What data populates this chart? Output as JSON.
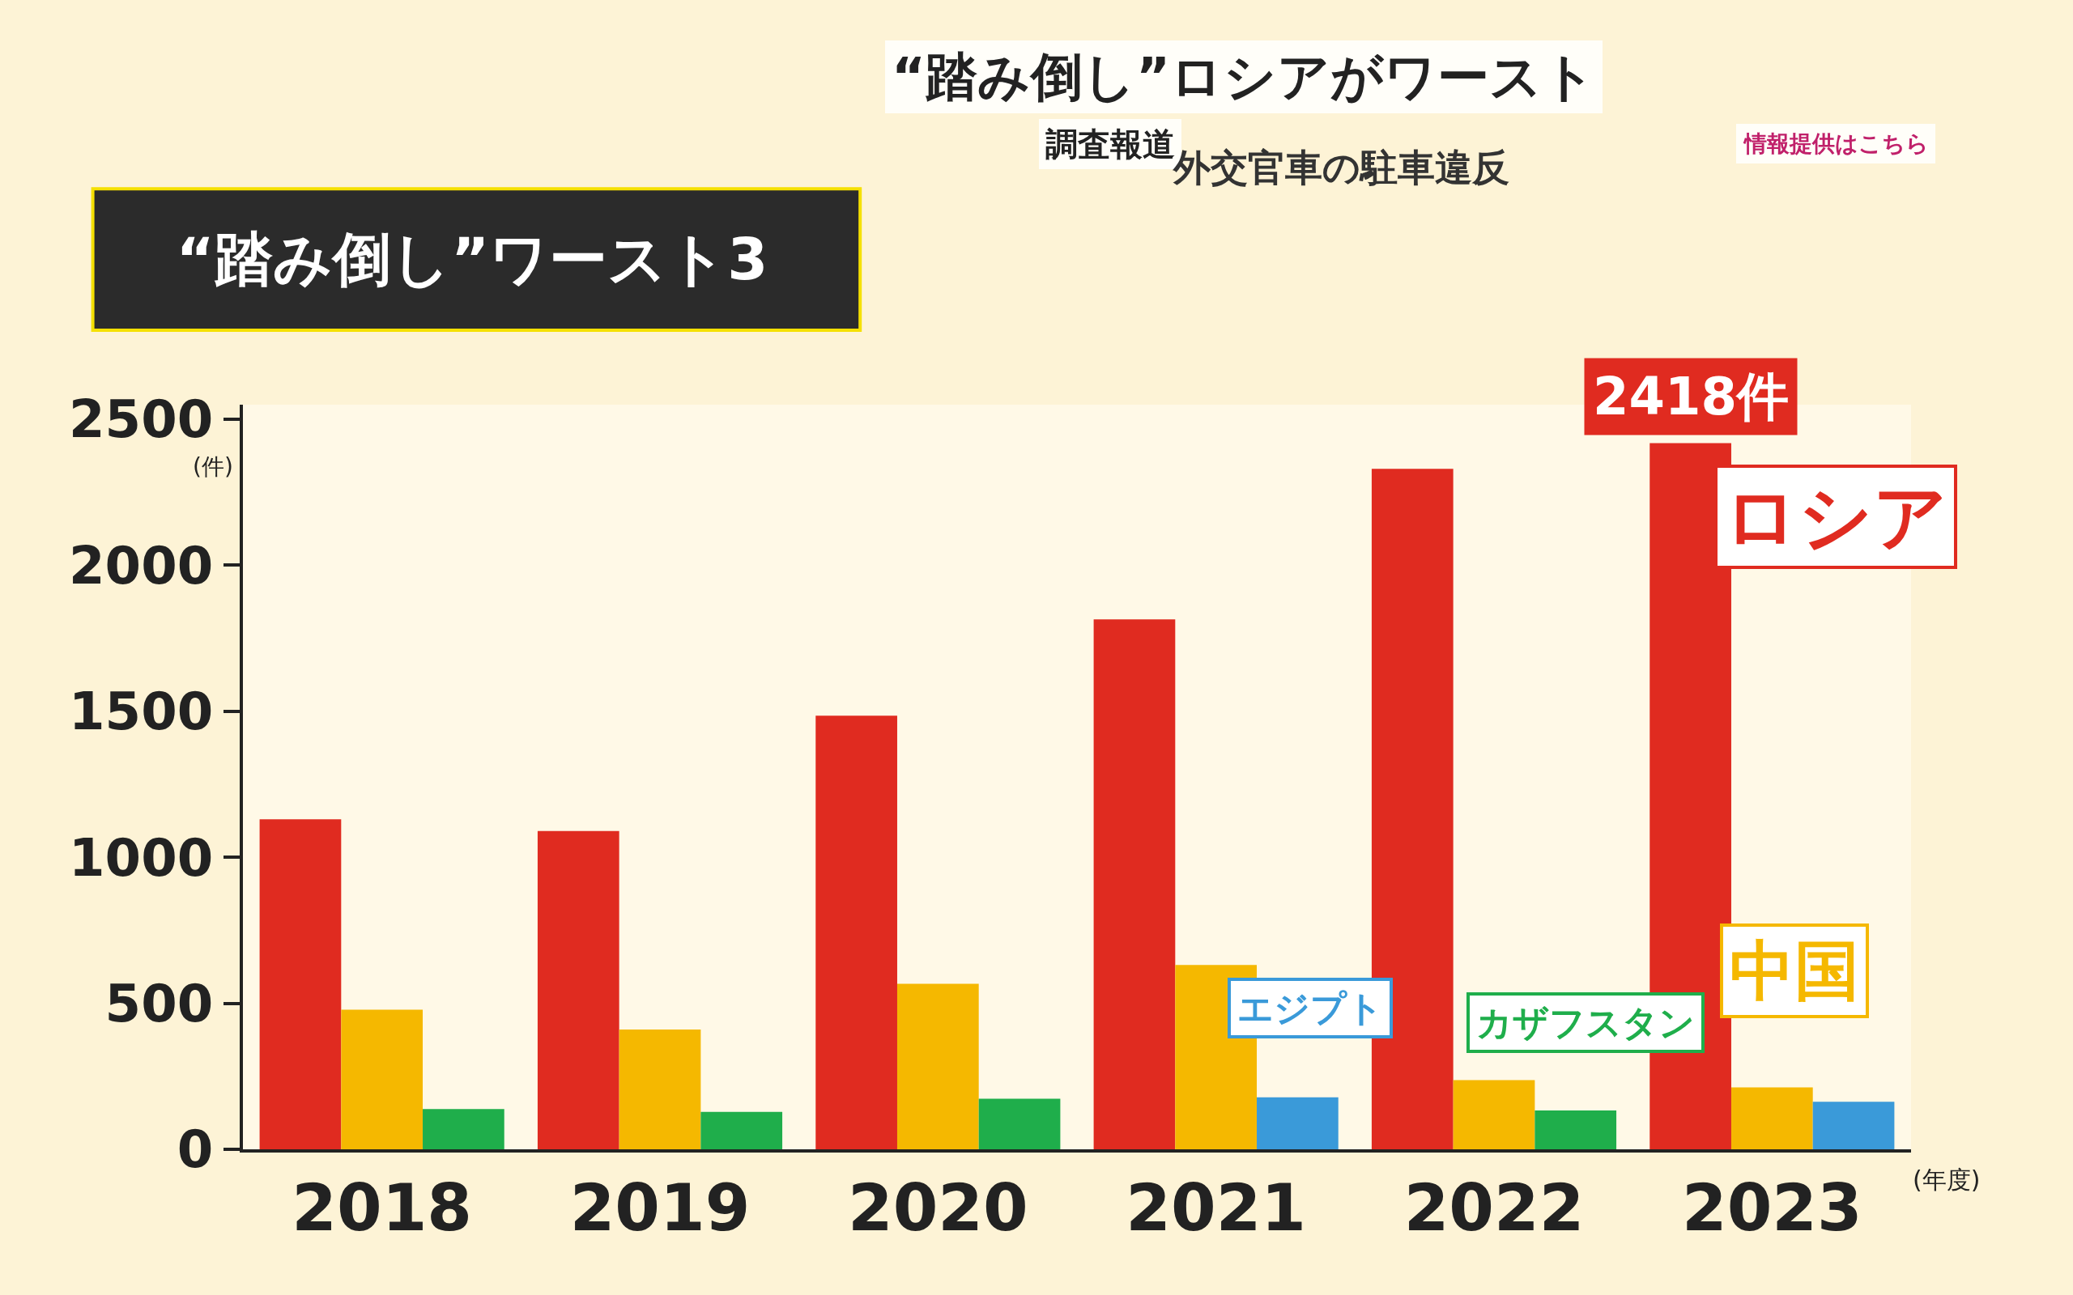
{
  "chart_data": {
    "type": "bar",
    "title": "“踏み倒し”ワースト3",
    "subtitle": "外交官車の駐車違反",
    "annotations": [
      "“踏み倒し”ロシアがワースト",
      "調査報道",
      "情報提供はこちら",
      "ロシア",
      "中国",
      "エジプト",
      "カザフスタン"
    ],
    "xlabel": "(年度)",
    "ylabel": "(件)",
    "categories": [
      "2018",
      "2019",
      "2020",
      "2021",
      "2022",
      "2023"
    ],
    "series": [
      {
        "color": "#e02b20",
        "values": [
          1130,
          1090,
          1485,
          1815,
          2330,
          2418
        ],
        "value_labels": [
          null,
          null,
          null,
          null,
          null,
          "2418件"
        ]
      },
      {
        "color": "#f5b800",
        "values": [
          478,
          410,
          567,
          631,
          237,
          212
        ]
      },
      {
        "color": "#1fae4b",
        "colors": [
          "#1fae4b",
          "#1fae4b",
          "#1fae4b",
          "#3a9ad9",
          "#1fae4b",
          "#3a9ad9"
        ],
        "values": [
          138,
          128,
          173,
          178,
          133,
          163
        ]
      }
    ],
    "ylim": [
      0,
      2550
    ],
    "yticks": [
      0,
      500,
      1000,
      1500,
      2000,
      2500
    ],
    "grid": false
  }
}
